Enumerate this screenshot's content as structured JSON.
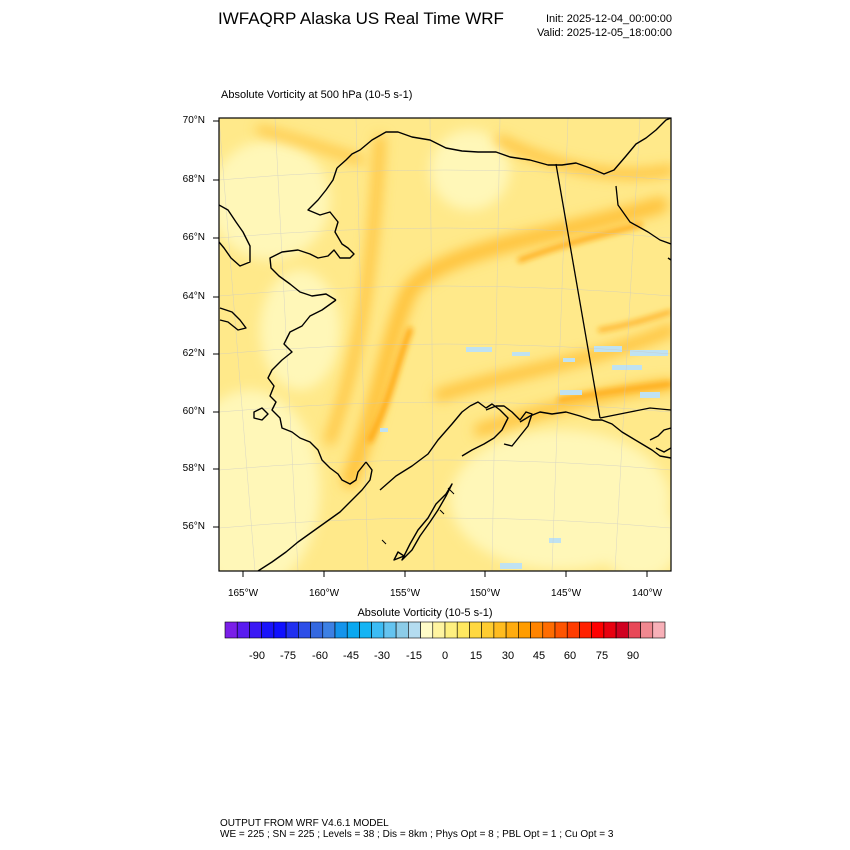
{
  "header": {
    "title": "IWFAQRP Alaska US Real Time WRF",
    "init": "Init: 2025-12-04_00:00:00",
    "valid": "Valid: 2025-12-05_18:00:00"
  },
  "plot": {
    "field_title": "Absolute Vorticity at 500 hPa   (10-5 s-1)"
  },
  "axes": {
    "lat_labels": [
      "70°N",
      "68°N",
      "66°N",
      "64°N",
      "62°N",
      "60°N",
      "58°N",
      "56°N"
    ],
    "lon_labels": [
      "165°W",
      "160°W",
      "155°W",
      "150°W",
      "145°W",
      "140°W"
    ]
  },
  "colorbar": {
    "title": "Absolute Vorticity  (10-5 s-1)",
    "labels": [
      "-90",
      "-75",
      "-60",
      "-45",
      "-30",
      "-15",
      "0",
      "15",
      "30",
      "45",
      "60",
      "75",
      "90"
    ],
    "colors": [
      "#7a1fe8",
      "#5a1cf0",
      "#3a18f5",
      "#1a14fa",
      "#1010ff",
      "#2030f0",
      "#2c4ee8",
      "#3468e0",
      "#3c80e4",
      "#1494ec",
      "#0aa8f0",
      "#14b4f4",
      "#3cbcf4",
      "#64c4f0",
      "#8ccce8",
      "#b4dcf0",
      "#fffcc8",
      "#fff4a0",
      "#fff080",
      "#ffe860",
      "#ffd840",
      "#ffcc30",
      "#ffbc20",
      "#ffac10",
      "#ff9c00",
      "#ff8400",
      "#ff6c00",
      "#ff5400",
      "#ff3c00",
      "#ff2000",
      "#ff0000",
      "#e80010",
      "#d00020",
      "#e84858",
      "#f08890",
      "#f8b0b8"
    ],
    "land_color": "#000000"
  },
  "footer": {
    "line1": "OUTPUT FROM WRF V4.6.1 MODEL",
    "line2": "WE = 225 ; SN = 225 ; Levels = 38 ; Dis = 8km ; Phys Opt = 8 ; PBL Opt = 1 ; Cu Opt = 3"
  }
}
